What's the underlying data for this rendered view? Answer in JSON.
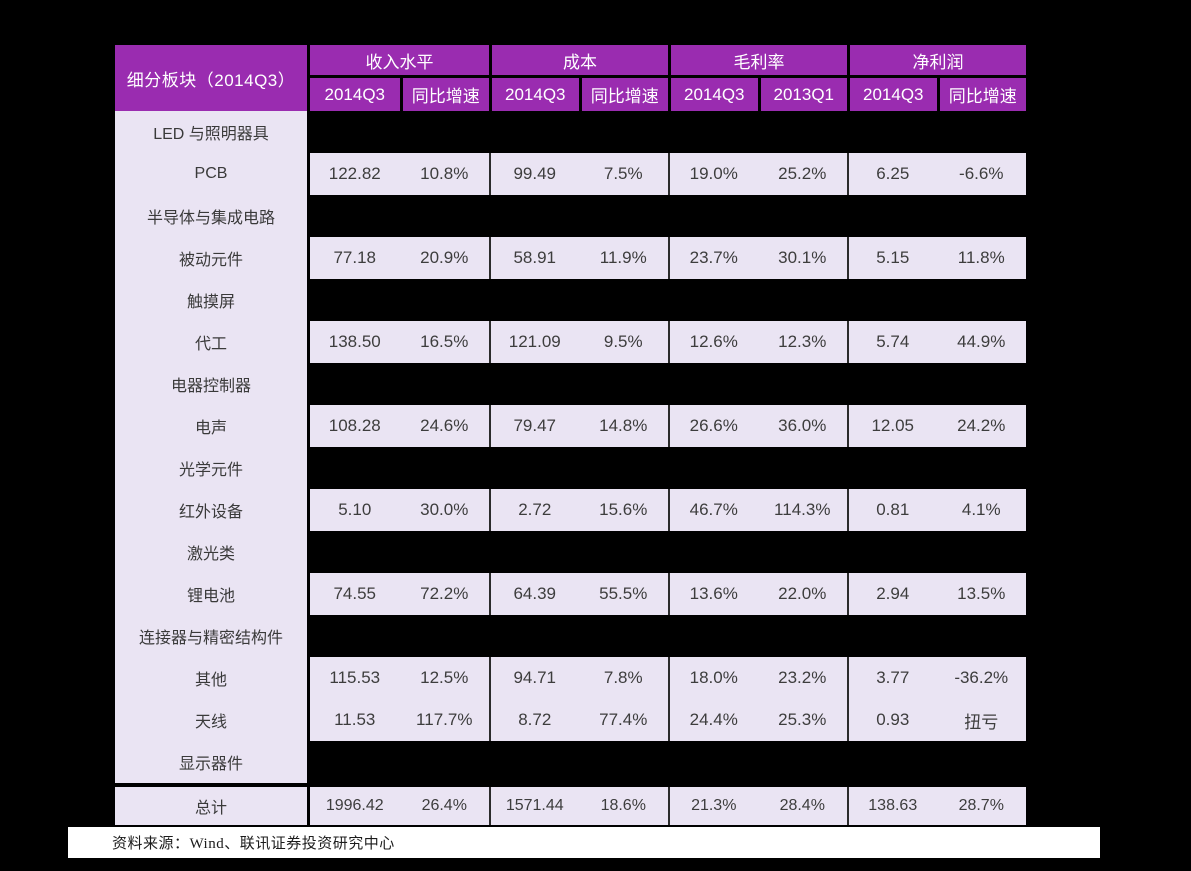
{
  "colors": {
    "page_bg": "#000000",
    "header_purple": "#9A2CB0",
    "header_text": "#FFFFFF",
    "cell_lavender": "#EAE4F3",
    "body_text": "#3D3D3D",
    "footer_bg": "#FFFFFF"
  },
  "footer": {
    "source_text": "资料来源：Wind、联讯证券投资研究中心"
  },
  "chart_data": {
    "type": "table",
    "corner_header": "细分板块（2014Q3）",
    "column_groups": [
      {
        "name": "收入水平",
        "columns": [
          "2014Q3",
          "同比增速"
        ]
      },
      {
        "name": "成本",
        "columns": [
          "2014Q3",
          "同比增速"
        ]
      },
      {
        "name": "毛利率",
        "columns": [
          "2014Q3",
          "2013Q1"
        ]
      },
      {
        "name": "净利润",
        "columns": [
          "2014Q3",
          "同比增速"
        ]
      }
    ],
    "rows": [
      {
        "label": "LED 与照明器具",
        "values": null
      },
      {
        "label": "PCB",
        "values": [
          "122.82",
          "10.8%",
          "99.49",
          "7.5%",
          "19.0%",
          "25.2%",
          "6.25",
          "-6.6%"
        ]
      },
      {
        "label": "半导体与集成电路",
        "values": null
      },
      {
        "label": "被动元件",
        "values": [
          "77.18",
          "20.9%",
          "58.91",
          "11.9%",
          "23.7%",
          "30.1%",
          "5.15",
          "11.8%"
        ]
      },
      {
        "label": "触摸屏",
        "values": null
      },
      {
        "label": "代工",
        "values": [
          "138.50",
          "16.5%",
          "121.09",
          "9.5%",
          "12.6%",
          "12.3%",
          "5.74",
          "44.9%"
        ]
      },
      {
        "label": "电器控制器",
        "values": null
      },
      {
        "label": "电声",
        "values": [
          "108.28",
          "24.6%",
          "79.47",
          "14.8%",
          "26.6%",
          "36.0%",
          "12.05",
          "24.2%"
        ]
      },
      {
        "label": "光学元件",
        "values": null
      },
      {
        "label": "红外设备",
        "values": [
          "5.10",
          "30.0%",
          "2.72",
          "15.6%",
          "46.7%",
          "114.3%",
          "0.81",
          "4.1%"
        ]
      },
      {
        "label": "激光类",
        "values": null
      },
      {
        "label": "锂电池",
        "values": [
          "74.55",
          "72.2%",
          "64.39",
          "55.5%",
          "13.6%",
          "22.0%",
          "2.94",
          "13.5%"
        ]
      },
      {
        "label": "连接器与精密结构件",
        "values": null
      },
      {
        "label": "其他",
        "values": [
          "115.53",
          "12.5%",
          "94.71",
          "7.8%",
          "18.0%",
          "23.2%",
          "3.77",
          "-36.2%"
        ]
      },
      {
        "label": "天线",
        "values": [
          "11.53",
          "117.7%",
          "8.72",
          "77.4%",
          "24.4%",
          "25.3%",
          "0.93",
          "扭亏"
        ]
      },
      {
        "label": "显示器件",
        "values": null
      },
      {
        "label": "总计",
        "total": true,
        "values": [
          "1996.42",
          "26.4%",
          "1571.44",
          "18.6%",
          "21.3%",
          "28.4%",
          "138.63",
          "28.7%"
        ]
      }
    ],
    "source": "资料来源：Wind、联讯证券投资研究中心"
  }
}
